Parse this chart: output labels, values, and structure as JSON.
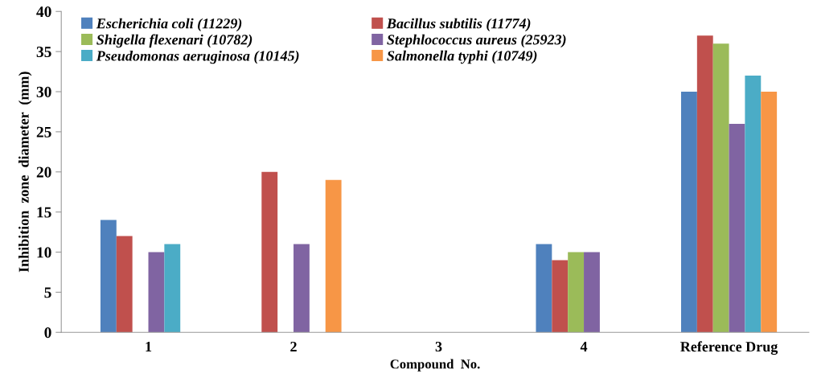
{
  "chart_data": {
    "type": "bar",
    "xlabel": "Compound  No.",
    "ylabel": "Inhibition  zone  diameter  (mm)",
    "categories": [
      "1",
      "2",
      "3",
      "4",
      "Reference Drug"
    ],
    "series": [
      {
        "name": "Escherichia coli (11229)",
        "color": "#4f81bd",
        "values": [
          14,
          null,
          null,
          11,
          30
        ]
      },
      {
        "name": "Bacillus subtilis (11774)",
        "color": "#c0504d",
        "values": [
          12,
          20,
          null,
          9,
          37
        ]
      },
      {
        "name": "Shigella flexenari (10782)",
        "color": "#9bbb59",
        "values": [
          null,
          null,
          null,
          10,
          36
        ]
      },
      {
        "name": "Stephlococcus aureus (25923)",
        "color": "#8064a2",
        "values": [
          10,
          11,
          null,
          10,
          26
        ]
      },
      {
        "name": "Pseudomonas aeruginosa (10145)",
        "color": "#4bacc6",
        "values": [
          11,
          null,
          null,
          null,
          32
        ]
      },
      {
        "name": "Salmonella typhi (10749)",
        "color": "#f79646",
        "values": [
          null,
          19,
          null,
          null,
          30
        ]
      }
    ],
    "ylim": [
      0,
      40
    ],
    "yticks": [
      0,
      5,
      10,
      15,
      20,
      25,
      30,
      35,
      40
    ],
    "grid": false,
    "legend": "top left"
  }
}
